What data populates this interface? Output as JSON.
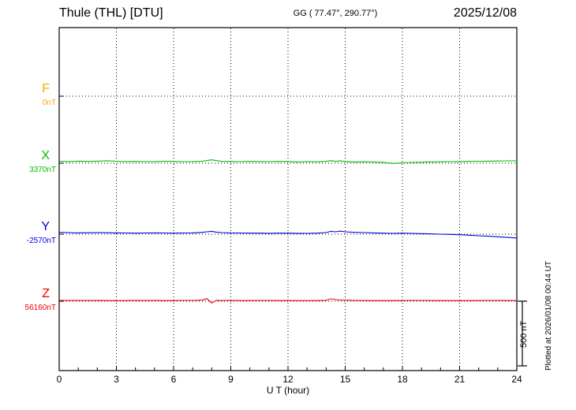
{
  "chart_data": {
    "type": "line",
    "title": "Thule (THL)  [DTU]",
    "subtitle": "GG ( 77.47°, 290.77°)",
    "date": "2025/12/08",
    "xlabel": "U T (hour)",
    "ylabel": "",
    "x_range": [
      0,
      24
    ],
    "x_ticks": [
      "0",
      "3",
      "6",
      "9",
      "12",
      "15",
      "18",
      "21",
      "24"
    ],
    "grid": "dotted vertical every 3h, dotted horizontal at each component baseline",
    "legend_position": "left margin component labels",
    "scale_bar_nT": 500,
    "scale_bar_label": "500 nT",
    "plotted_note": "Plotted at 2026/01/08 00:44 UT",
    "series": [
      {
        "name": "F",
        "baseline_label": "0nT",
        "baseline_nT": 0,
        "color": "#FFA500",
        "points": []
      },
      {
        "name": "X",
        "baseline_label": "3370nT",
        "baseline_nT": 3370,
        "color": "#00BB00",
        "points": [
          [
            0,
            3385
          ],
          [
            0.5,
            3383
          ],
          [
            1,
            3386
          ],
          [
            1.5,
            3384
          ],
          [
            2,
            3386
          ],
          [
            2.5,
            3389
          ],
          [
            3,
            3385
          ],
          [
            3.5,
            3383
          ],
          [
            4,
            3384
          ],
          [
            4.5,
            3382
          ],
          [
            5,
            3383
          ],
          [
            5.5,
            3385
          ],
          [
            6,
            3384
          ],
          [
            6.5,
            3382
          ],
          [
            7,
            3383
          ],
          [
            7.5,
            3385
          ],
          [
            7.75,
            3391
          ],
          [
            8,
            3396
          ],
          [
            8.25,
            3390
          ],
          [
            8.5,
            3384
          ],
          [
            9,
            3383
          ],
          [
            9.5,
            3382
          ],
          [
            10,
            3384
          ],
          [
            10.5,
            3383
          ],
          [
            11,
            3382
          ],
          [
            11.5,
            3384
          ],
          [
            12,
            3383
          ],
          [
            12.5,
            3380
          ],
          [
            13,
            3382
          ],
          [
            13.5,
            3381
          ],
          [
            14,
            3384
          ],
          [
            14.25,
            3390
          ],
          [
            14.5,
            3384
          ],
          [
            14.75,
            3389
          ],
          [
            15,
            3383
          ],
          [
            15.5,
            3380
          ],
          [
            16,
            3381
          ],
          [
            16.5,
            3379
          ],
          [
            17,
            3377
          ],
          [
            17.25,
            3372
          ],
          [
            17.5,
            3368
          ],
          [
            18,
            3373
          ],
          [
            18.5,
            3376
          ],
          [
            19,
            3378
          ],
          [
            19.5,
            3380
          ],
          [
            20,
            3381
          ],
          [
            20.5,
            3382
          ],
          [
            21,
            3383
          ],
          [
            21.5,
            3384
          ],
          [
            22,
            3385
          ],
          [
            22.5,
            3386
          ],
          [
            23,
            3387
          ],
          [
            23.5,
            3388
          ],
          [
            24,
            3388
          ]
        ]
      },
      {
        "name": "Y",
        "baseline_label": "-2570nT",
        "baseline_nT": -2570,
        "color": "#0000DD",
        "points": [
          [
            0,
            -2556
          ],
          [
            0.5,
            -2558
          ],
          [
            1,
            -2560
          ],
          [
            1.5,
            -2559
          ],
          [
            2,
            -2558
          ],
          [
            2.5,
            -2559
          ],
          [
            3,
            -2560
          ],
          [
            3.5,
            -2561
          ],
          [
            4,
            -2562
          ],
          [
            4.5,
            -2561
          ],
          [
            5,
            -2560
          ],
          [
            5.5,
            -2561
          ],
          [
            6,
            -2562
          ],
          [
            6.5,
            -2561
          ],
          [
            7,
            -2560
          ],
          [
            7.5,
            -2556
          ],
          [
            7.75,
            -2552
          ],
          [
            8,
            -2548
          ],
          [
            8.25,
            -2554
          ],
          [
            8.5,
            -2558
          ],
          [
            9,
            -2560
          ],
          [
            9.5,
            -2561
          ],
          [
            10,
            -2562
          ],
          [
            10.5,
            -2562
          ],
          [
            11,
            -2563
          ],
          [
            11.5,
            -2562
          ],
          [
            12,
            -2562
          ],
          [
            12.5,
            -2563
          ],
          [
            13,
            -2564
          ],
          [
            13.5,
            -2562
          ],
          [
            14,
            -2558
          ],
          [
            14.25,
            -2548
          ],
          [
            14.5,
            -2552
          ],
          [
            14.75,
            -2546
          ],
          [
            15,
            -2552
          ],
          [
            15.5,
            -2556
          ],
          [
            16,
            -2558
          ],
          [
            16.5,
            -2560
          ],
          [
            17,
            -2562
          ],
          [
            17.5,
            -2564
          ],
          [
            18,
            -2562
          ],
          [
            18.5,
            -2564
          ],
          [
            19,
            -2566
          ],
          [
            19.5,
            -2568
          ],
          [
            20,
            -2570
          ],
          [
            20.5,
            -2572
          ],
          [
            21,
            -2574
          ],
          [
            21.5,
            -2578
          ],
          [
            22,
            -2582
          ],
          [
            22.5,
            -2586
          ],
          [
            23,
            -2590
          ],
          [
            23.5,
            -2595
          ],
          [
            24,
            -2600
          ]
        ]
      },
      {
        "name": "Z",
        "baseline_label": "56160nT",
        "baseline_nT": 56160,
        "color": "#EE0000",
        "points": [
          [
            0,
            56166
          ],
          [
            0.5,
            56165
          ],
          [
            1,
            56166
          ],
          [
            1.5,
            56165
          ],
          [
            2,
            56166
          ],
          [
            2.5,
            56165
          ],
          [
            3,
            56164
          ],
          [
            3.5,
            56165
          ],
          [
            4,
            56166
          ],
          [
            4.5,
            56165
          ],
          [
            5,
            56166
          ],
          [
            5.5,
            56165
          ],
          [
            6,
            56165
          ],
          [
            6.5,
            56166
          ],
          [
            7,
            56166
          ],
          [
            7.5,
            56168
          ],
          [
            7.75,
            56180
          ],
          [
            8,
            56146
          ],
          [
            8.25,
            56167
          ],
          [
            8.5,
            56165
          ],
          [
            9,
            56166
          ],
          [
            9.5,
            56165
          ],
          [
            10,
            56165
          ],
          [
            10.5,
            56166
          ],
          [
            11,
            56166
          ],
          [
            11.5,
            56165
          ],
          [
            12,
            56165
          ],
          [
            12.5,
            56164
          ],
          [
            13,
            56164
          ],
          [
            13.5,
            56165
          ],
          [
            14,
            56167
          ],
          [
            14.25,
            56178
          ],
          [
            14.5,
            56172
          ],
          [
            14.75,
            56169
          ],
          [
            15,
            56168
          ],
          [
            15.5,
            56166
          ],
          [
            16,
            56165
          ],
          [
            16.5,
            56165
          ],
          [
            17,
            56164
          ],
          [
            17.5,
            56165
          ],
          [
            18,
            56165
          ],
          [
            18.5,
            56166
          ],
          [
            19,
            56166
          ],
          [
            19.5,
            56165
          ],
          [
            20,
            56165
          ],
          [
            20.5,
            56164
          ],
          [
            21,
            56164
          ],
          [
            21.5,
            56165
          ],
          [
            22,
            56165
          ],
          [
            22.5,
            56166
          ],
          [
            23,
            56166
          ],
          [
            23.5,
            56165
          ],
          [
            24,
            56165
          ]
        ]
      }
    ]
  }
}
